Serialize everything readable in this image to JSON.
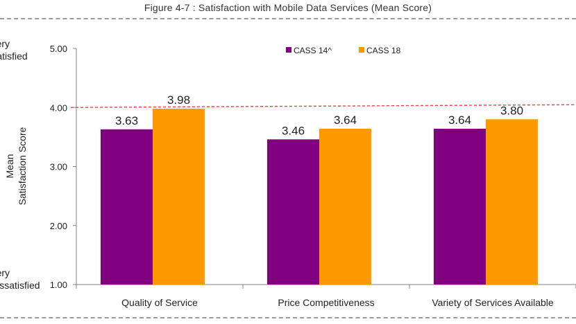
{
  "figure": {
    "title": "Figure 4-7 : Satisfaction with Mobile Data Services (Mean Score)"
  },
  "scale_labels": {
    "top": [
      "Very",
      "Satisfied"
    ],
    "bottom": [
      "Very",
      "Dissatisfied"
    ]
  },
  "chart_data": {
    "type": "bar",
    "title": "",
    "xlabel": "",
    "ylabel": "Mean\nSatisfaction Score",
    "ylim": [
      1.0,
      5.0
    ],
    "yticks": [
      "1.00",
      "2.00",
      "3.00",
      "4.00",
      "5.00"
    ],
    "categories": [
      "Quality of Service",
      "Price Competitiveness",
      "Variety of Services Available"
    ],
    "series": [
      {
        "name": "CASS 14^",
        "values": [
          3.63,
          3.46,
          3.64
        ],
        "labels": [
          "3.63",
          "3.46",
          "3.64"
        ],
        "color": "#800080"
      },
      {
        "name": "CASS 18",
        "values": [
          3.98,
          3.64,
          3.8
        ],
        "labels": [
          "3.98",
          "3.64",
          "3.80"
        ],
        "color": "#FF9900"
      }
    ],
    "reference_line": {
      "value": 4.0,
      "style": "dashed",
      "color": "#ff3b3b"
    },
    "legend_position": "top-right",
    "grid": false
  }
}
